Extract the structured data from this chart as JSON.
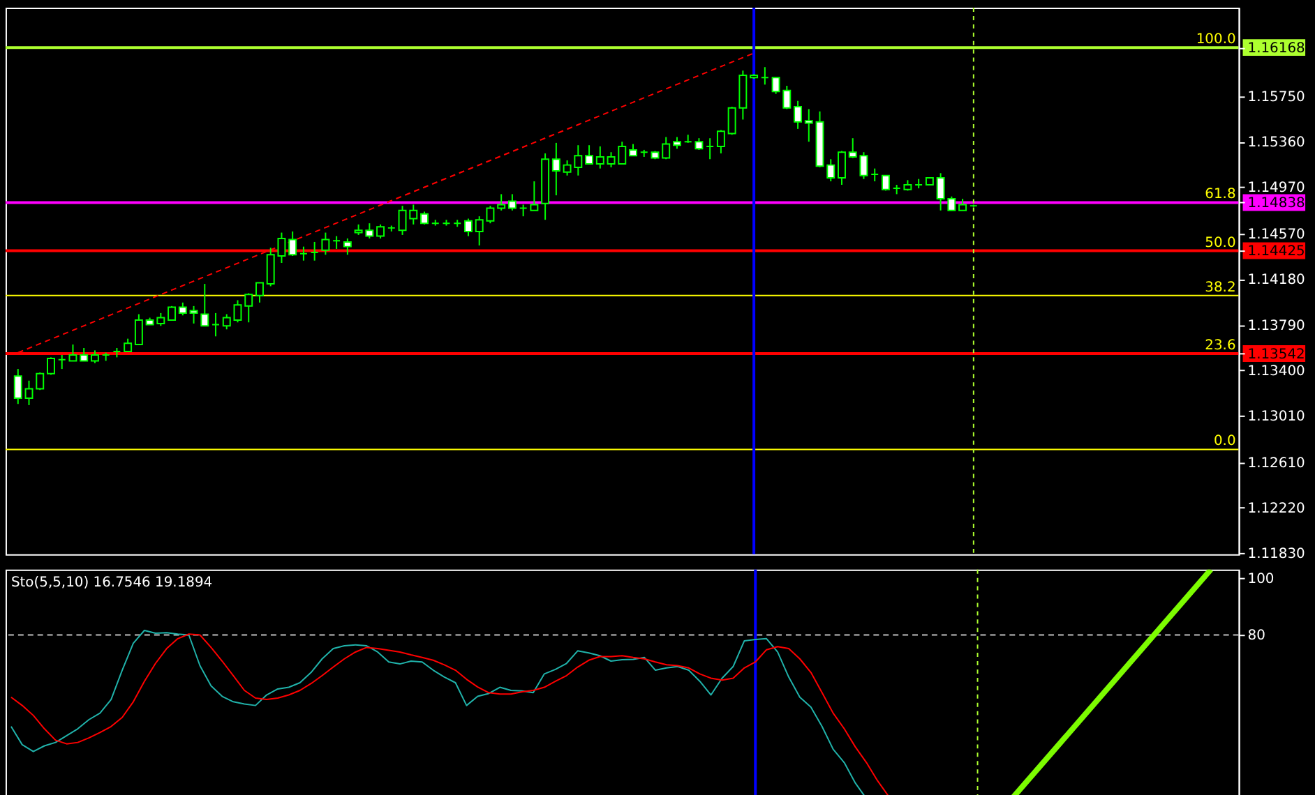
{
  "chart_data": [
    {
      "type": "candlestick",
      "grid": false,
      "tick_labels": "y",
      "categories": [
        null,
        null,
        null,
        null,
        null,
        null,
        null,
        null,
        null,
        null,
        null,
        null,
        null,
        null,
        null,
        null,
        null,
        null,
        null,
        null,
        null,
        null,
        null,
        null,
        null,
        null,
        null,
        null,
        null,
        null,
        null,
        null,
        null,
        null,
        null,
        null,
        null,
        null,
        null,
        null,
        null,
        null,
        null,
        null,
        null,
        null,
        null,
        null,
        null,
        null,
        null,
        null,
        null,
        null,
        null,
        null,
        null,
        null,
        null,
        null,
        null,
        null,
        null,
        null,
        null,
        null,
        null,
        null,
        null,
        null,
        null,
        null,
        null,
        null,
        null,
        null,
        null,
        null,
        null,
        null,
        null,
        null,
        null,
        null,
        null,
        null,
        null,
        null,
        null,
        null,
        null,
        null,
        null,
        null,
        null,
        null,
        null,
        null,
        null,
        null,
        null,
        null,
        null,
        null,
        null,
        null,
        null,
        null,
        null,
        null,
        null
      ],
      "ohlc": [
        [
          1.1335,
          1.1341,
          1.1311,
          1.1316
        ],
        [
          1.1316,
          1.1331,
          1.131,
          1.1324
        ],
        [
          1.1324,
          1.1338,
          1.1323,
          1.1337
        ],
        [
          1.1337,
          1.1351,
          1.1336,
          1.135
        ],
        [
          1.1349,
          1.1353,
          1.1341,
          1.1349
        ],
        [
          1.1348,
          1.1362,
          1.1348,
          1.1353
        ],
        [
          1.1353,
          1.1359,
          1.1348,
          1.1348
        ],
        [
          1.1348,
          1.1357,
          1.1346,
          1.1353
        ],
        [
          1.1353,
          1.1355,
          1.1348,
          1.1353
        ],
        [
          1.1356,
          1.1359,
          1.1351,
          1.1356
        ],
        [
          1.1356,
          1.1367,
          1.1356,
          1.1363
        ],
        [
          1.1362,
          1.1388,
          1.1362,
          1.1383
        ],
        [
          1.1383,
          1.1385,
          1.1379,
          1.1379
        ],
        [
          1.138,
          1.1389,
          1.1378,
          1.1385
        ],
        [
          1.1383,
          1.1395,
          1.1383,
          1.1394
        ],
        [
          1.1394,
          1.1398,
          1.1387,
          1.1389
        ],
        [
          1.1391,
          1.1395,
          1.138,
          1.1389
        ],
        [
          1.1388,
          1.1414,
          1.1378,
          1.1378
        ],
        [
          1.1379,
          1.1389,
          1.1369,
          1.1379
        ],
        [
          1.1378,
          1.1388,
          1.1375,
          1.1385
        ],
        [
          1.1383,
          1.14,
          1.1381,
          1.1396
        ],
        [
          1.1395,
          1.1406,
          1.1381,
          1.1405
        ],
        [
          1.1404,
          1.1415,
          1.1398,
          1.1415
        ],
        [
          1.1414,
          1.1445,
          1.1412,
          1.1439
        ],
        [
          1.1438,
          1.1458,
          1.1432,
          1.1453
        ],
        [
          1.1452,
          1.1459,
          1.1438,
          1.1439
        ],
        [
          1.144,
          1.1446,
          1.1434,
          1.144
        ],
        [
          1.1441,
          1.145,
          1.1434,
          1.1441
        ],
        [
          1.1443,
          1.1458,
          1.1439,
          1.1452
        ],
        [
          1.1451,
          1.1455,
          1.1444,
          1.1451
        ],
        [
          1.145,
          1.1453,
          1.1439,
          1.1446
        ],
        [
          1.1458,
          1.1465,
          1.1456,
          1.146
        ],
        [
          1.146,
          1.1466,
          1.1453,
          1.1455
        ],
        [
          1.1455,
          1.1465,
          1.1453,
          1.1463
        ],
        [
          1.1462,
          1.1464,
          1.1459,
          1.1462
        ],
        [
          1.146,
          1.1481,
          1.1456,
          1.1477
        ],
        [
          1.147,
          1.1482,
          1.1465,
          1.1477
        ],
        [
          1.1474,
          1.1476,
          1.1465,
          1.1466
        ],
        [
          1.1466,
          1.1469,
          1.1464,
          1.1466
        ],
        [
          1.1466,
          1.1469,
          1.1464,
          1.1466
        ],
        [
          1.1466,
          1.1469,
          1.1463,
          1.1466
        ],
        [
          1.1468,
          1.147,
          1.1455,
          1.1459
        ],
        [
          1.1459,
          1.1472,
          1.1447,
          1.1469
        ],
        [
          1.1468,
          1.1481,
          1.1466,
          1.1479
        ],
        [
          1.1479,
          1.1491,
          1.1477,
          1.1482
        ],
        [
          1.1485,
          1.1491,
          1.1477,
          1.1479
        ],
        [
          1.1479,
          1.1482,
          1.1472,
          1.1479
        ],
        [
          1.1477,
          1.1502,
          1.1477,
          1.1482
        ],
        [
          1.1483,
          1.1526,
          1.1469,
          1.1521
        ],
        [
          1.1521,
          1.1535,
          1.149,
          1.1511
        ],
        [
          1.151,
          1.152,
          1.1507,
          1.1516
        ],
        [
          1.1514,
          1.1533,
          1.1507,
          1.1524
        ],
        [
          1.1524,
          1.1533,
          1.1517,
          1.1517
        ],
        [
          1.1517,
          1.1532,
          1.1513,
          1.1523
        ],
        [
          1.1517,
          1.1527,
          1.1514,
          1.1523
        ],
        [
          1.1517,
          1.1536,
          1.1517,
          1.1532
        ],
        [
          1.1529,
          1.1534,
          1.1524,
          1.1524
        ],
        [
          1.1527,
          1.1529,
          1.1523,
          1.1527
        ],
        [
          1.1527,
          1.1528,
          1.1521,
          1.1522
        ],
        [
          1.1522,
          1.154,
          1.1521,
          1.1534
        ],
        [
          1.1536,
          1.154,
          1.153,
          1.1533
        ],
        [
          1.1536,
          1.1542,
          1.1535,
          1.1536
        ],
        [
          1.1536,
          1.1539,
          1.1529,
          1.153
        ],
        [
          1.1532,
          1.1539,
          1.1521,
          1.1532
        ],
        [
          1.1532,
          1.1546,
          1.1526,
          1.1545
        ],
        [
          1.1543,
          1.1566,
          1.1542,
          1.1565
        ],
        [
          1.1565,
          1.1597,
          1.1555,
          1.1593
        ],
        [
          1.1591,
          1.1594,
          1.159,
          1.1593
        ],
        [
          1.1591,
          1.16,
          1.1585,
          1.1591
        ],
        [
          1.1591,
          1.1591,
          1.1577,
          1.1579
        ],
        [
          1.158,
          1.1584,
          1.1564,
          1.1565
        ],
        [
          1.1566,
          1.1571,
          1.1547,
          1.1553
        ],
        [
          1.1554,
          1.1564,
          1.1536,
          1.1552
        ],
        [
          1.1553,
          1.1562,
          1.1514,
          1.1515
        ],
        [
          1.1516,
          1.1521,
          1.1502,
          1.1505
        ],
        [
          1.1505,
          1.1528,
          1.1499,
          1.1527
        ],
        [
          1.1527,
          1.1539,
          1.1522,
          1.1523
        ],
        [
          1.1524,
          1.1527,
          1.1504,
          1.1507
        ],
        [
          1.1508,
          1.1513,
          1.1502,
          1.1508
        ],
        [
          1.1507,
          1.1507,
          1.1494,
          1.1495
        ],
        [
          1.1496,
          1.1499,
          1.1491,
          1.1496
        ],
        [
          1.1495,
          1.1503,
          1.1494,
          1.1499
        ],
        [
          1.1499,
          1.1504,
          1.1496,
          1.1499
        ],
        [
          1.1499,
          1.1505,
          1.1499,
          1.1505
        ],
        [
          1.1505,
          1.1509,
          1.1477,
          1.1487
        ],
        [
          1.1487,
          1.1489,
          1.1477,
          1.1477
        ],
        [
          1.1477,
          1.1487,
          1.1477,
          1.1482
        ],
        [
          1.1481,
          1.1482,
          1.148,
          1.1481
        ],
        null,
        null,
        null,
        null,
        null,
        null,
        null,
        null,
        null,
        null,
        null,
        null,
        null,
        null,
        null,
        null,
        null,
        null,
        null,
        null,
        null,
        null,
        null
      ],
      "series": [
        {
          "type": "line",
          "color": "#ff0000",
          "line_style": "dashed",
          "values": [
            1.1355,
            null,
            null,
            null,
            null,
            null,
            null,
            null,
            null,
            null,
            null,
            null,
            null,
            null,
            null,
            null,
            null,
            null,
            null,
            null,
            null,
            null,
            null,
            null,
            null,
            null,
            null,
            null,
            null,
            null,
            null,
            null,
            null,
            null,
            null,
            null,
            null,
            null,
            null,
            null,
            null,
            null,
            null,
            null,
            null,
            null,
            null,
            null,
            null,
            null,
            null,
            null,
            null,
            null,
            null,
            null,
            null,
            null,
            null,
            null,
            null,
            null,
            null,
            null,
            null,
            null,
            null,
            1.1612,
            null,
            null,
            null,
            null,
            null,
            null,
            null,
            null,
            null,
            null,
            null,
            null,
            null,
            null,
            null,
            null,
            null,
            null,
            null,
            null,
            null,
            null,
            null,
            null,
            null,
            null,
            null,
            null,
            null,
            null,
            null,
            null,
            null,
            null,
            null,
            null,
            null,
            null,
            null,
            null,
            null,
            null,
            null
          ]
        }
      ],
      "ylim": [
        1.1182,
        1.1651
      ],
      "yticks": [
        1.16168,
        {
          "value": 1.1575,
          "label": "1.15750"
        },
        {
          "value": 1.1536,
          "label": "1.15360"
        },
        {
          "value": 1.1497,
          "label": "1.14970"
        },
        1.14838,
        {
          "value": 1.1457,
          "label": "1.14570"
        },
        1.14425,
        {
          "value": 1.1418,
          "label": "1.14180"
        },
        {
          "value": 1.1379,
          "label": "1.13790"
        },
        1.13542,
        {
          "value": 1.134,
          "label": "1.13400"
        },
        {
          "value": 1.1301,
          "label": "1.13010"
        },
        {
          "value": 1.1261,
          "label": "1.12610"
        },
        {
          "value": 1.1222,
          "label": "1.12220"
        },
        {
          "value": 1.1183,
          "label": "1.11830"
        }
      ],
      "ref_lines": [
        {
          "axis": "y",
          "value": 1.16168,
          "color": "#adff2f"
        },
        {
          "axis": "y",
          "value": 1.14838,
          "color": "#ff00ff"
        },
        {
          "axis": "y",
          "value": 1.14425,
          "color": "#ff0000"
        },
        {
          "axis": "y",
          "value": 1.1404,
          "color": "#ffff00"
        },
        {
          "axis": "y",
          "value": 1.13542,
          "color": "#ff0000"
        },
        {
          "axis": "y",
          "value": 1.1272,
          "color": "#ffff00"
        }
      ],
      "annotations": [
        {
          "text": "100.0",
          "y": 1.16168
        },
        {
          "text": "61.8",
          "y": 1.14838
        },
        {
          "text": "50.0",
          "y": 1.14425
        },
        {
          "text": "38.2",
          "y": 1.1404
        },
        {
          "text": "23.6",
          "y": 1.13542
        },
        {
          "text": "0.0",
          "y": 1.1272
        }
      ]
    },
    {
      "type": "line",
      "grid": false,
      "tick_labels": "y",
      "categories": [
        null,
        null,
        null,
        null,
        null,
        null,
        null,
        null,
        null,
        null,
        null,
        null,
        null,
        null,
        null,
        null,
        null,
        null,
        null,
        null,
        null,
        null,
        null,
        null,
        null,
        null,
        null,
        null,
        null,
        null,
        null,
        null,
        null,
        null,
        null,
        null,
        null,
        null,
        null,
        null,
        null,
        null,
        null,
        null,
        null,
        null,
        null,
        null,
        null,
        null,
        null,
        null,
        null,
        null,
        null,
        null,
        null,
        null,
        null,
        null,
        null,
        null,
        null,
        null,
        null,
        null,
        null,
        null,
        null,
        null,
        null,
        null,
        null,
        null,
        null,
        null,
        null,
        null,
        null,
        null,
        null,
        null,
        null,
        null,
        null,
        null,
        null,
        null,
        null,
        null,
        null,
        null,
        null,
        null,
        null,
        null,
        null,
        null,
        null,
        null,
        null,
        null,
        null,
        null,
        null,
        null,
        null,
        null,
        null,
        null,
        null
      ],
      "annotations": [
        "Sto(5,5,10) 16.7546 19.1894"
      ],
      "ylim": [
        22,
        103
      ],
      "yticks": [
        100,
        80
      ],
      "ref_lines": [
        {
          "axis": "y",
          "value": 80,
          "color": "#c0c0c0",
          "line_style": "dashed"
        }
      ],
      "series": [
        {
          "color": "#20b2aa",
          "values": [
            47.8,
            41.4,
            39.0,
            41.0,
            42.2,
            44.6,
            47.0,
            50.2,
            52.5,
            57.3,
            67.6,
            77.1,
            81.6,
            80.6,
            80.8,
            80.3,
            80.0,
            69.2,
            62.1,
            58.4,
            56.5,
            55.7,
            55.2,
            58.9,
            61.0,
            61.6,
            63.2,
            66.8,
            71.6,
            75.2,
            76.2,
            76.5,
            76.2,
            74.0,
            70.5,
            69.8,
            70.8,
            70.5,
            67.6,
            65.2,
            63.2,
            55.2,
            58.4,
            59.4,
            61.6,
            60.5,
            60.3,
            59.7,
            66.3,
            67.9,
            70.0,
            74.4,
            73.7,
            72.7,
            70.8,
            71.3,
            71.4,
            72.1,
            67.6,
            68.4,
            68.9,
            67.6,
            63.7,
            58.9,
            64.8,
            68.9,
            77.9,
            78.4,
            78.7,
            74.0,
            65.2,
            58.1,
            54.6,
            47.8,
            39.8,
            35.1,
            27.9,
            22.4,
            null,
            null,
            null,
            null,
            null,
            null,
            null,
            null,
            null,
            null,
            null,
            null,
            null,
            null,
            null,
            null,
            null,
            null,
            null,
            null,
            null,
            null,
            null,
            null,
            null,
            null,
            null,
            null,
            null,
            null,
            null,
            null,
            null
          ]
        },
        {
          "color": "#ff0000",
          "values": [
            58.1,
            55.2,
            51.7,
            47.0,
            43.0,
            41.7,
            42.2,
            43.8,
            45.7,
            47.8,
            51.0,
            56.5,
            63.7,
            70.0,
            75.2,
            78.7,
            80.3,
            80.0,
            75.6,
            70.8,
            65.7,
            60.5,
            57.8,
            57.3,
            57.8,
            58.9,
            60.5,
            62.9,
            65.7,
            68.7,
            71.6,
            74.0,
            75.6,
            75.2,
            74.6,
            74.0,
            73.0,
            72.1,
            71.1,
            69.5,
            67.6,
            64.4,
            61.7,
            59.7,
            59.2,
            59.2,
            60.0,
            60.5,
            61.6,
            63.7,
            65.7,
            68.7,
            71.1,
            72.4,
            72.4,
            72.7,
            72.1,
            71.6,
            70.5,
            69.5,
            69.2,
            68.4,
            66.3,
            64.8,
            64.1,
            64.8,
            68.4,
            70.5,
            74.8,
            75.9,
            75.2,
            71.6,
            66.8,
            59.7,
            52.5,
            47.0,
            40.6,
            35.1,
            28.7,
            23.2,
            null,
            null,
            null,
            null,
            null,
            null,
            null,
            null,
            null,
            null,
            null,
            null,
            null,
            null,
            null,
            null,
            null,
            null,
            null,
            null,
            null,
            null,
            null,
            null,
            null,
            null,
            null,
            null,
            null,
            null,
            null
          ]
        },
        {
          "color": "#7cfc00",
          "values": [
            null,
            null,
            null,
            null,
            null,
            null,
            null,
            null,
            null,
            null,
            null,
            null,
            null,
            null,
            null,
            null,
            null,
            null,
            null,
            null,
            null,
            null,
            null,
            null,
            null,
            null,
            null,
            null,
            null,
            null,
            null,
            null,
            null,
            null,
            null,
            null,
            null,
            null,
            null,
            null,
            null,
            null,
            null,
            null,
            null,
            null,
            null,
            null,
            null,
            null,
            null,
            null,
            null,
            null,
            null,
            null,
            null,
            null,
            null,
            null,
            null,
            null,
            null,
            null,
            null,
            null,
            null,
            null,
            null,
            null,
            null,
            null,
            null,
            null,
            null,
            null,
            null,
            null,
            null,
            null,
            null,
            null,
            null,
            null,
            null,
            null,
            null,
            null,
            null,
            null,
            22,
            null,
            null,
            null,
            null,
            null,
            null,
            null,
            null,
            null,
            null,
            null,
            null,
            null,
            null,
            null,
            null,
            null,
            103,
            null,
            null
          ]
        }
      ]
    }
  ]
}
